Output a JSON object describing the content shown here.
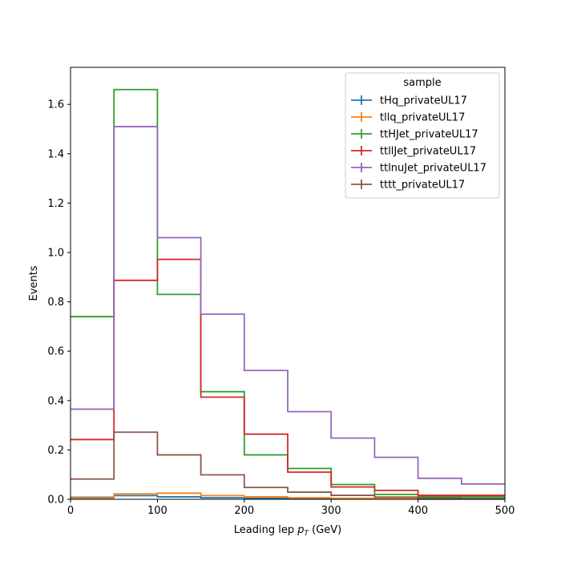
{
  "chart_data": {
    "type": "line",
    "style": "step-histogram",
    "title": "",
    "xlabel": "Leading lep",
    "xlabel_sub_main": "p",
    "xlabel_sub": "T",
    "xlabel_unit": "(GeV)",
    "ylabel": "Events",
    "xlim": [
      0,
      500
    ],
    "ylim": [
      0,
      1.75
    ],
    "xticks": [
      0,
      100,
      200,
      300,
      400,
      500
    ],
    "yticks": [
      0.0,
      0.2,
      0.4,
      0.6,
      0.8,
      1.0,
      1.2,
      1.4,
      1.6
    ],
    "ytick_labels": [
      "0.0",
      "0.2",
      "0.4",
      "0.6",
      "0.8",
      "1.0",
      "1.2",
      "1.4",
      "1.6"
    ],
    "bin_edges": [
      0,
      50,
      100,
      150,
      200,
      250,
      300,
      350,
      400,
      450,
      500
    ],
    "legend": {
      "title": "sample",
      "placement": "top-right"
    },
    "series": [
      {
        "name": "tHq_privateUL17",
        "color": "#1f77b4",
        "values": [
          0.008,
          0.015,
          0.01,
          0.006,
          0.004,
          0.003,
          0.002,
          0.002,
          0.001,
          0.001
        ]
      },
      {
        "name": "tllq_privateUL17",
        "color": "#ff7f0e",
        "values": [
          0.005,
          0.022,
          0.025,
          0.015,
          0.01,
          0.006,
          0.004,
          0.003,
          0.002,
          0.002
        ]
      },
      {
        "name": "ttHJet_privateUL17",
        "color": "#2ca02c",
        "values": [
          0.74,
          1.66,
          0.83,
          0.436,
          0.18,
          0.125,
          0.06,
          0.02,
          0.01,
          0.01
        ]
      },
      {
        "name": "ttllJet_privateUL17",
        "color": "#d62728",
        "values": [
          0.242,
          0.887,
          0.972,
          0.414,
          0.264,
          0.11,
          0.05,
          0.036,
          0.016,
          0.016
        ]
      },
      {
        "name": "ttlnuJet_privateUL17",
        "color": "#9467bd",
        "values": [
          0.365,
          1.51,
          1.06,
          0.75,
          0.522,
          0.355,
          0.248,
          0.17,
          0.085,
          0.062
        ]
      },
      {
        "name": "tttt_privateUL17",
        "color": "#8c564b",
        "values": [
          0.082,
          0.272,
          0.18,
          0.099,
          0.048,
          0.029,
          0.016,
          0.009,
          0.005,
          0.003
        ]
      }
    ]
  }
}
